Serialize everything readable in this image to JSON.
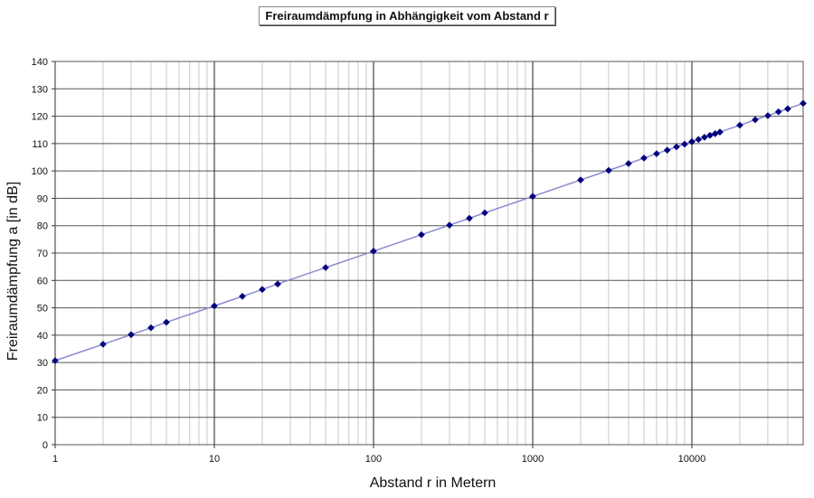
{
  "chart_data": {
    "type": "line",
    "title": "Freiraumdämpfung in Abhängigkeit vom Abstand r",
    "xlabel": "Abstand r in Metern",
    "ylabel": "Freiraumdämpfung a [in dB]",
    "x_scale": "log",
    "xlim": [
      1,
      50000
    ],
    "ylim": [
      0,
      140
    ],
    "x_ticks": [
      "1",
      "10",
      "100",
      "1000",
      "10000"
    ],
    "y_ticks": [
      "0",
      "10",
      "20",
      "30",
      "40",
      "50",
      "60",
      "70",
      "80",
      "90",
      "100",
      "110",
      "120",
      "130",
      "140"
    ],
    "grid": true,
    "series": [
      {
        "color": "#000080",
        "line_color": "#8a8ad0",
        "marker": "diamond",
        "points": [
          {
            "x": 1,
            "y": 30.7
          },
          {
            "x": 2,
            "y": 36.7
          },
          {
            "x": 3,
            "y": 40.2
          },
          {
            "x": 4,
            "y": 42.7
          },
          {
            "x": 5,
            "y": 44.7
          },
          {
            "x": 10,
            "y": 50.7
          },
          {
            "x": 15,
            "y": 54.2
          },
          {
            "x": 20,
            "y": 56.7
          },
          {
            "x": 25,
            "y": 58.7
          },
          {
            "x": 50,
            "y": 64.7
          },
          {
            "x": 100,
            "y": 70.7
          },
          {
            "x": 200,
            "y": 76.7
          },
          {
            "x": 300,
            "y": 80.2
          },
          {
            "x": 400,
            "y": 82.7
          },
          {
            "x": 500,
            "y": 84.7
          },
          {
            "x": 1000,
            "y": 90.7
          },
          {
            "x": 2000,
            "y": 96.7
          },
          {
            "x": 3000,
            "y": 100.2
          },
          {
            "x": 4000,
            "y": 102.7
          },
          {
            "x": 5000,
            "y": 104.7
          },
          {
            "x": 6000,
            "y": 106.3
          },
          {
            "x": 7000,
            "y": 107.6
          },
          {
            "x": 8000,
            "y": 108.8
          },
          {
            "x": 9000,
            "y": 109.8
          },
          {
            "x": 10000,
            "y": 110.7
          },
          {
            "x": 11000,
            "y": 111.5
          },
          {
            "x": 12000,
            "y": 112.3
          },
          {
            "x": 13000,
            "y": 113.0
          },
          {
            "x": 14000,
            "y": 113.6
          },
          {
            "x": 15000,
            "y": 114.2
          },
          {
            "x": 20000,
            "y": 116.7
          },
          {
            "x": 25000,
            "y": 118.7
          },
          {
            "x": 30000,
            "y": 120.2
          },
          {
            "x": 35000,
            "y": 121.6
          },
          {
            "x": 40000,
            "y": 122.7
          },
          {
            "x": 50000,
            "y": 124.7
          }
        ]
      }
    ]
  }
}
